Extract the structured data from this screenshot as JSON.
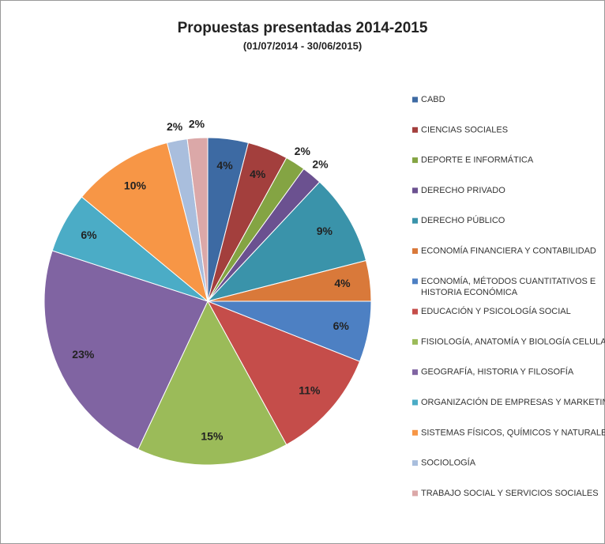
{
  "chart_data": {
    "type": "pie",
    "title": "Propuestas presentadas 2014-2015",
    "subtitle": "(01/07/2014 - 30/06/2015)",
    "categories": [
      "CABD",
      "CIENCIAS SOCIALES",
      "DEPORTE E INFORMÁTICA",
      "DERECHO PRIVADO",
      "DERECHO PÚBLICO",
      "ECONOMÍA FINANCIERA Y CONTABILIDAD",
      "ECONOMÍA, MÉTODOS CUANTITATIVOS E HISTORIA ECONÓMICA",
      "EDUCACIÓN Y PSICOLOGÍA SOCIAL",
      "FISIOLOGÍA, ANATOMÍA Y BIOLOGÍA CELULAR",
      "GEOGRAFÍA, HISTORIA Y FILOSOFÍA",
      "ORGANIZACIÓN DE EMPRESAS Y MARKETING",
      "SISTEMAS FÍSICOS, QUÍMICOS Y NATURALES",
      "SOCIOLOGÍA",
      "TRABAJO SOCIAL Y SERVICIOS SOCIALES"
    ],
    "values": [
      4,
      4,
      2,
      2,
      9,
      4,
      6,
      11,
      15,
      23,
      6,
      10,
      2,
      2
    ],
    "value_labels": [
      "4%",
      "4%",
      "2%",
      "2%",
      "9%",
      "4%",
      "6%",
      "11%",
      "15%",
      "23%",
      "6%",
      "10%",
      "2%",
      "2%"
    ],
    "colors": [
      "#3d6aa3",
      "#a33f3d",
      "#84a443",
      "#6b5190",
      "#3a93aa",
      "#d9793a",
      "#4d80c3",
      "#c54d4a",
      "#9bbb59",
      "#8064a2",
      "#4bacc6",
      "#f79646",
      "#a9bedd",
      "#dba8a8"
    ],
    "legend": "right"
  }
}
